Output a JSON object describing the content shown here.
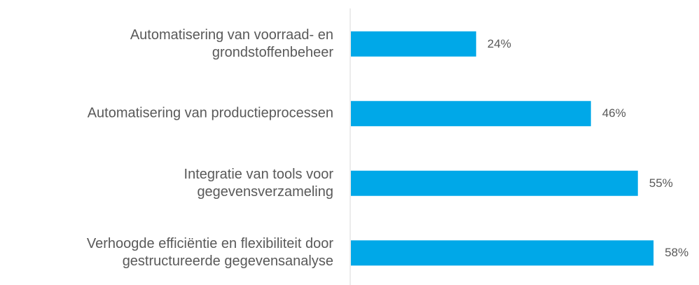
{
  "chart_data": {
    "type": "barh",
    "categories": [
      "Automatisering van voorraad- en\ngrondstoffenbeheer",
      "Automatisering van productieprocessen",
      "Integratie van tools voor\ngegevensverzameling",
      "Verhoogde efficiëntie en flexibiliteit door\ngestructureerde gegevensanalyse"
    ],
    "values": [
      24,
      46,
      55,
      58
    ],
    "value_labels": [
      "24%",
      "46%",
      "55%",
      "58%"
    ],
    "color": "#00a8e8"
  }
}
